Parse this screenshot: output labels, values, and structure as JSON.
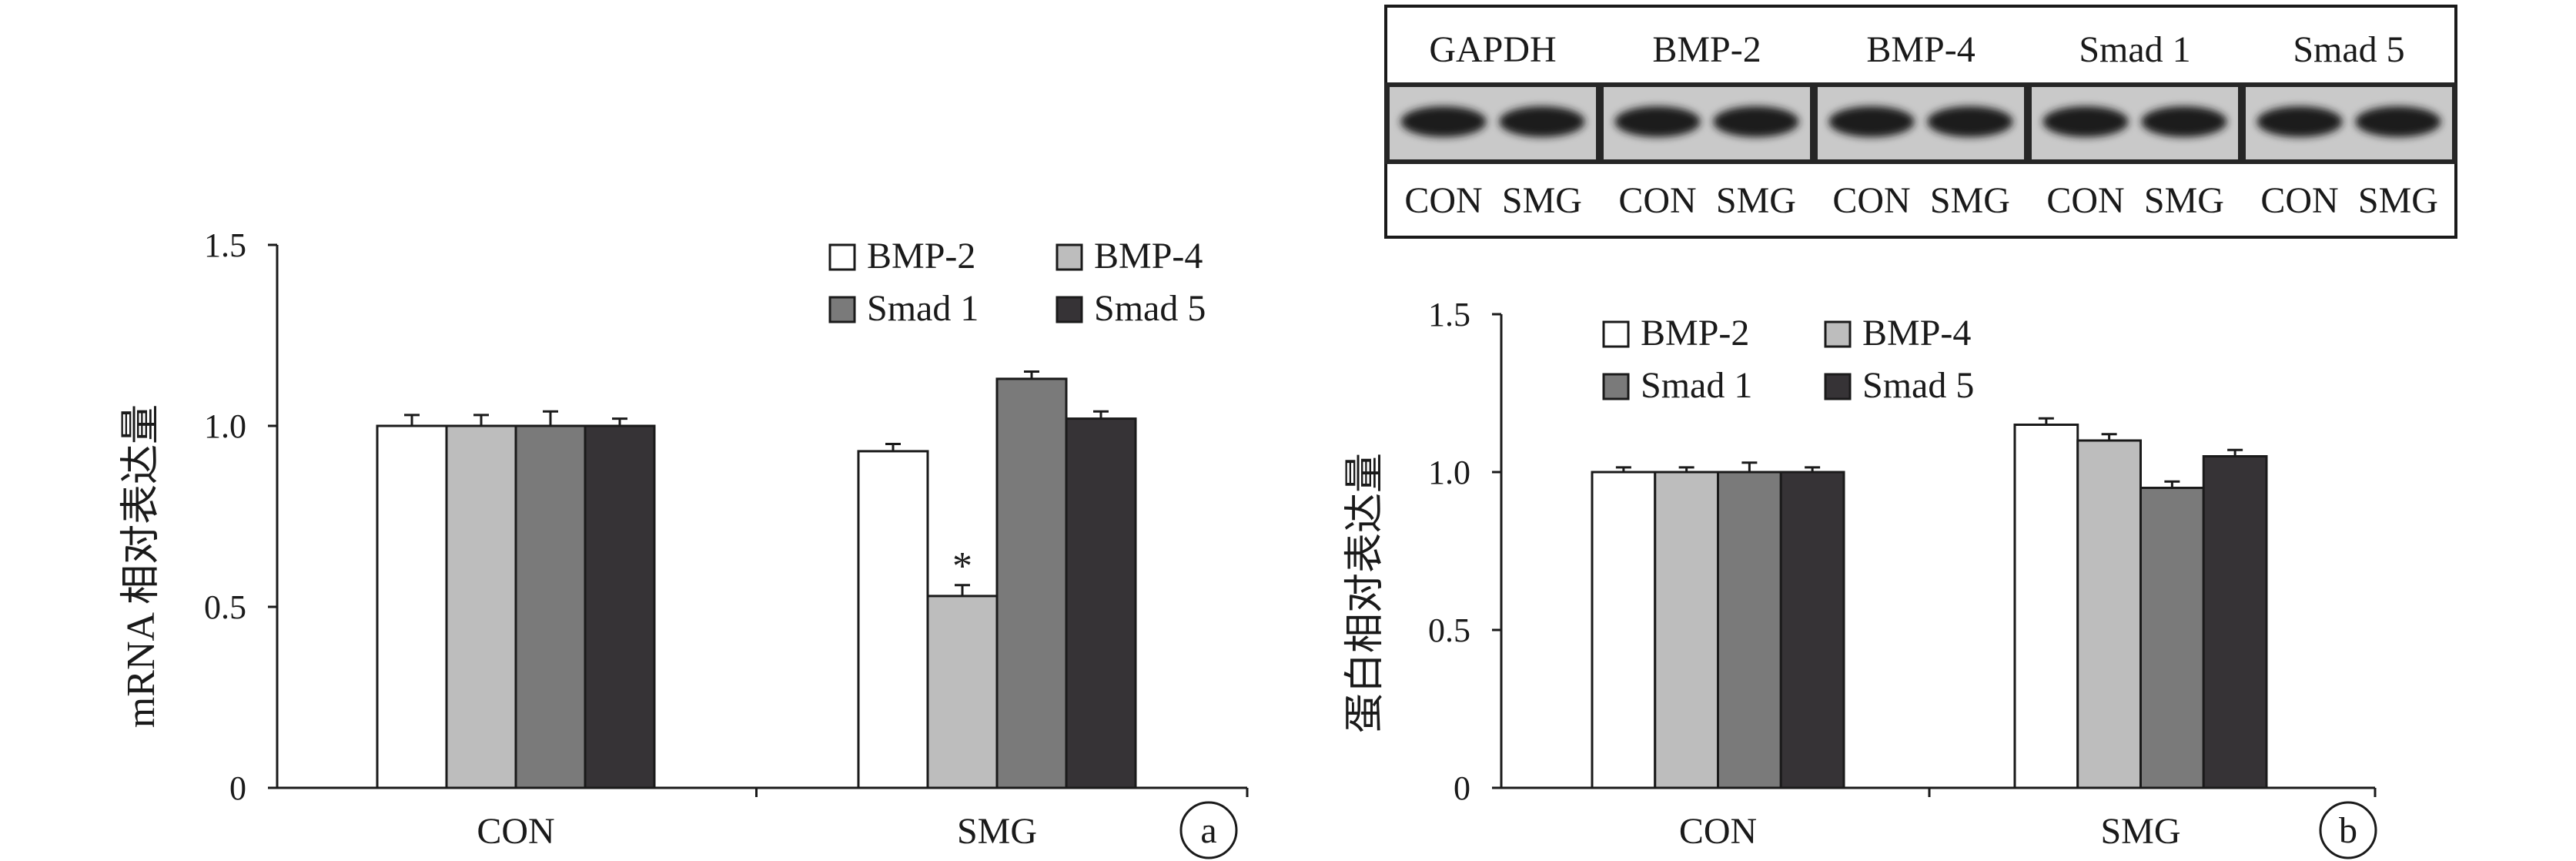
{
  "colors": {
    "BMP-2": "#ffffff",
    "BMP-4": "#bdbdbd",
    "Smad 1": "#7a7a7a",
    "Smad 5": "#363336",
    "axis": "#1a1a1a"
  },
  "blot": {
    "proteins": [
      "GAPDH",
      "BMP-2",
      "BMP-4",
      "Smad 1",
      "Smad 5"
    ],
    "lanes": [
      "CON",
      "SMG",
      "CON",
      "SMG",
      "CON",
      "SMG",
      "CON",
      "SMG",
      "CON",
      "SMG"
    ]
  },
  "chart_data": [
    {
      "type": "bar",
      "panel": "a",
      "categories": [
        "CON",
        "SMG"
      ],
      "series": [
        {
          "name": "BMP-2",
          "values": [
            1.0,
            0.93
          ],
          "errors": [
            0.03,
            0.02
          ]
        },
        {
          "name": "BMP-4",
          "values": [
            1.0,
            0.53
          ],
          "errors": [
            0.03,
            0.03
          ]
        },
        {
          "name": "Smad 1",
          "values": [
            1.0,
            1.13
          ],
          "errors": [
            0.04,
            0.02
          ]
        },
        {
          "name": "Smad 5",
          "values": [
            1.0,
            1.02
          ],
          "errors": [
            0.02,
            0.02
          ]
        }
      ],
      "annotations": [
        {
          "category": "SMG",
          "series": "BMP-4",
          "text": "*"
        }
      ],
      "ylabel": "mRNA 相对表达量",
      "ylim": [
        0,
        1.5
      ],
      "yticks": [
        "0",
        "0.5",
        "1.0",
        "1.5"
      ],
      "legend": "top-right"
    },
    {
      "type": "bar",
      "panel": "b",
      "categories": [
        "CON",
        "SMG"
      ],
      "series": [
        {
          "name": "BMP-2",
          "values": [
            1.0,
            1.15
          ],
          "errors": [
            0.015,
            0.02
          ]
        },
        {
          "name": "BMP-4",
          "values": [
            1.0,
            1.1
          ],
          "errors": [
            0.015,
            0.02
          ]
        },
        {
          "name": "Smad 1",
          "values": [
            1.0,
            0.95
          ],
          "errors": [
            0.03,
            0.02
          ]
        },
        {
          "name": "Smad 5",
          "values": [
            1.0,
            1.05
          ],
          "errors": [
            0.015,
            0.02
          ]
        }
      ],
      "ylabel": "蛋白相对表达量",
      "ylim": [
        0,
        1.5
      ],
      "yticks": [
        "0",
        "0.5",
        "1.0",
        "1.5"
      ],
      "legend": "top-left"
    }
  ]
}
